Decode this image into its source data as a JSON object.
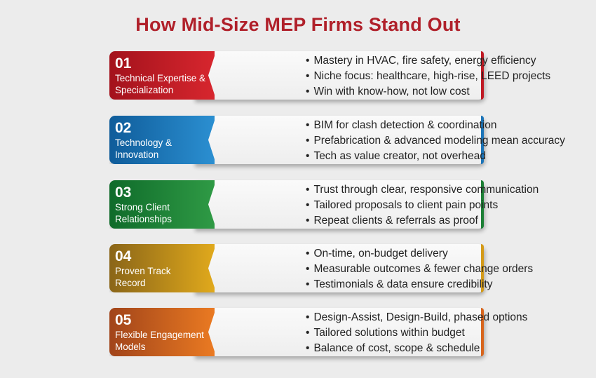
{
  "title": "How Mid-Size MEP Firms Stand Out",
  "items": [
    {
      "number": "01",
      "label_line1": "Technical Expertise &",
      "label_line2": "Specialization",
      "color_dark": "#a3121c",
      "color_light": "#d7262e",
      "edge_color": "#c01a24",
      "bullets": [
        "Mastery in HVAC, fire safety, energy efficiency",
        "Niche focus: healthcare, high-rise, LEED projects",
        "Win with know-how, not low cost"
      ]
    },
    {
      "number": "02",
      "label_line1": "Technology &",
      "label_line2": "Innovation",
      "color_dark": "#0f5c9a",
      "color_light": "#2b8fd1",
      "edge_color": "#1b74b8",
      "bullets": [
        "BIM for clash detection & coordination",
        "Prefabrication & advanced modeling mean accuracy",
        "Tech as value creator, not overhead"
      ]
    },
    {
      "number": "03",
      "label_line1": "Strong Client",
      "label_line2": "Relationships",
      "color_dark": "#0f6b2a",
      "color_light": "#2f9a45",
      "edge_color": "#1c7f35",
      "bullets": [
        "Trust through clear, responsive communication",
        "Tailored proposals to client pain points",
        "Repeat clients & referrals as proof"
      ]
    },
    {
      "number": "04",
      "label_line1": "Proven Track",
      "label_line2": "Record",
      "color_dark": "#8a6518",
      "color_light": "#e0a91c",
      "edge_color": "#d49a18",
      "bullets": [
        "On-time, on-budget delivery",
        "Measurable outcomes & fewer change orders",
        "Testimonials & data ensure credibility"
      ]
    },
    {
      "number": "05",
      "label_line1": "Flexible Engagement",
      "label_line2": "Models",
      "color_dark": "#a1441a",
      "color_light": "#ea7a22",
      "edge_color": "#d8651d",
      "bullets": [
        "Design-Assist, Design-Build, phased options",
        "Tailored solutions within budget",
        "Balance of cost, scope & schedule"
      ]
    }
  ]
}
